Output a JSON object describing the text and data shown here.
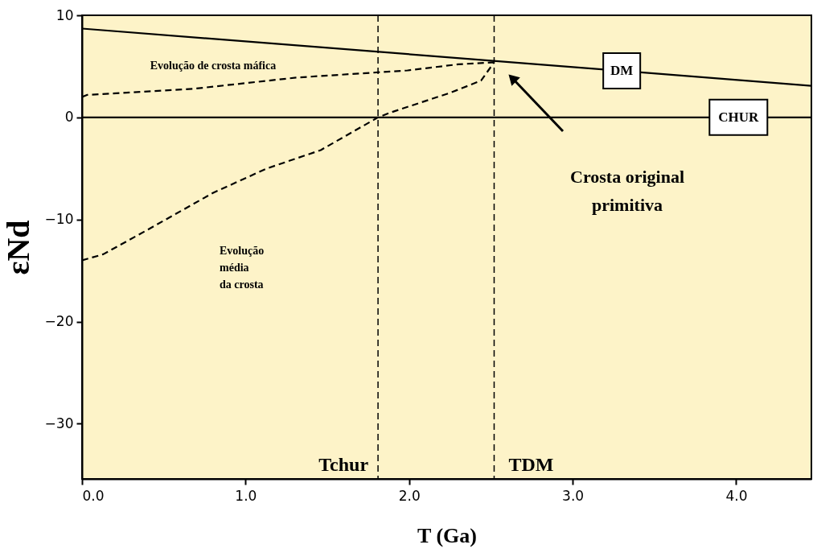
{
  "chart_data": {
    "type": "line",
    "xlabel": "T (Ga)",
    "ylabel": "εNd",
    "xlim": [
      0,
      4.46
    ],
    "ylim": [
      -35.4,
      10
    ],
    "xticks": [
      {
        "value": 0,
        "label": "0.0"
      },
      {
        "value": 1,
        "label": "1.0"
      },
      {
        "value": 2,
        "label": "2.0"
      },
      {
        "value": 3,
        "label": "3.0"
      },
      {
        "value": 4,
        "label": "4.0"
      }
    ],
    "yticks": [
      -30,
      -20,
      -10,
      0,
      10
    ],
    "grid": false,
    "series": [
      {
        "name": "DM",
        "color": "#000000",
        "line_style": "solid",
        "x": [
          0,
          4.46
        ],
        "values": [
          8.7,
          3.1
        ]
      },
      {
        "name": "CHUR",
        "color": "#000000",
        "line_style": "solid",
        "x": [
          0,
          4.46
        ],
        "values": [
          0,
          0
        ]
      },
      {
        "color": "#000000",
        "line_style": "dashed",
        "x": [
          0,
          0.03,
          0.68,
          1.31,
          1.99,
          2.3,
          2.52
        ],
        "values": [
          2.0,
          2.2,
          2.8,
          3.9,
          4.6,
          5.2,
          5.4
        ]
      },
      {
        "color": "#000000",
        "line_style": "dashed",
        "x": [
          0,
          0.13,
          0.39,
          0.8,
          1.13,
          1.46,
          1.81,
          1.89,
          2.25,
          2.44,
          2.52
        ],
        "values": [
          -14.0,
          -13.4,
          -11.1,
          -7.4,
          -5.0,
          -3.2,
          0,
          0.5,
          2.4,
          3.6,
          5.4
        ]
      }
    ],
    "ref_lines": [
      {
        "axis": "x",
        "value": 1.81,
        "label": "Tchur",
        "line_style": "dashed"
      },
      {
        "axis": "x",
        "value": 2.52,
        "label": "TDM",
        "line_style": "dashed"
      }
    ],
    "annotations": [
      "Evolução de crosta máfica",
      "Evolução\nmédia\nda crosta",
      "Crosta original\nprimitiva"
    ]
  }
}
